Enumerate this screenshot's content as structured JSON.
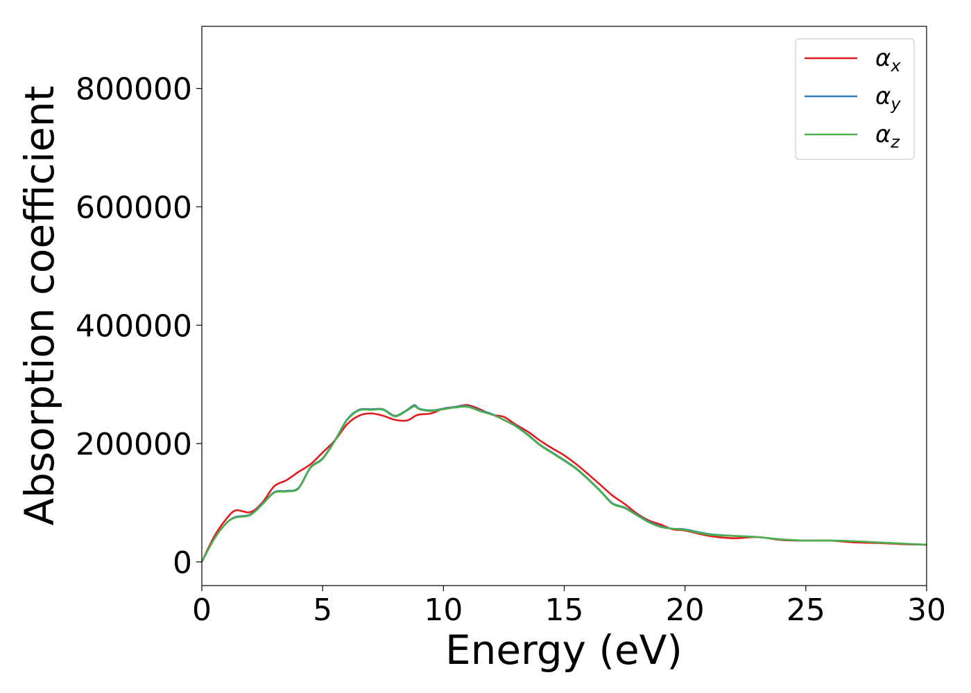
{
  "chart_data": {
    "type": "line",
    "title": "",
    "xlabel": "Energy (eV)",
    "ylabel": "Absorption coefficient",
    "xlim": [
      0,
      30
    ],
    "ylim": [
      -40000,
      905000
    ],
    "xticks": [
      0,
      5,
      10,
      15,
      20,
      25,
      30
    ],
    "xtick_labels": [
      "0",
      "5",
      "10",
      "15",
      "20",
      "25",
      "30"
    ],
    "yticks": [
      0,
      200000,
      400000,
      600000,
      800000
    ],
    "ytick_labels": [
      "0",
      "200000",
      "400000",
      "600000",
      "800000"
    ],
    "grid": false,
    "legend_position": "top-right",
    "x": [
      0,
      0.5,
      1,
      1.4,
      2,
      2.5,
      3,
      3.5,
      4,
      4.5,
      5,
      5.5,
      6,
      6.5,
      7,
      7.5,
      8,
      8.5,
      8.8,
      9,
      9.5,
      10,
      10.5,
      11,
      11.5,
      12,
      12.5,
      13,
      13.5,
      14,
      14.5,
      15,
      15.5,
      16,
      16.5,
      17,
      17.5,
      18,
      18.5,
      19,
      19.5,
      20,
      21,
      22,
      23,
      24,
      25,
      26,
      27,
      28,
      29,
      30
    ],
    "series": [
      {
        "name": "α",
        "subscript": "x",
        "color": "#e41a1c",
        "values": [
          0,
          42000,
          72000,
          87000,
          84000,
          100000,
          128000,
          138000,
          152000,
          165000,
          185000,
          205000,
          232000,
          247000,
          251000,
          247000,
          240000,
          239000,
          246000,
          249000,
          251000,
          259000,
          262000,
          265000,
          258000,
          249000,
          245000,
          232000,
          220000,
          205000,
          192000,
          180000,
          165000,
          148000,
          130000,
          112000,
          98000,
          82000,
          70000,
          63000,
          55000,
          53000,
          44000,
          40000,
          42000,
          37000,
          36000,
          36000,
          33000,
          32000,
          30000,
          29000
        ]
      },
      {
        "name": "α",
        "subscript": "y",
        "color": "#377eb8",
        "values": [
          0,
          38000,
          65000,
          76000,
          80000,
          98000,
          118000,
          120000,
          125000,
          160000,
          175000,
          205000,
          240000,
          257000,
          258000,
          258000,
          247000,
          257000,
          265000,
          259000,
          256000,
          259000,
          262000,
          263000,
          256000,
          250000,
          240000,
          230000,
          215000,
          198000,
          185000,
          172000,
          158000,
          140000,
          120000,
          99000,
          92000,
          80000,
          68000,
          60000,
          56000,
          55000,
          47000,
          44000,
          42000,
          38000,
          36000,
          36000,
          35000,
          33000,
          31000,
          29000
        ]
      },
      {
        "name": "α",
        "subscript": "z",
        "color": "#4daf4a",
        "values": [
          0,
          38000,
          65000,
          75000,
          79000,
          97000,
          117000,
          119000,
          124000,
          159000,
          174000,
          204000,
          239000,
          256000,
          257000,
          257000,
          246000,
          256000,
          263000,
          258000,
          255000,
          258000,
          261000,
          262000,
          255000,
          249000,
          240000,
          229000,
          214000,
          197000,
          184000,
          171000,
          157000,
          139000,
          119000,
          98000,
          91000,
          79000,
          67000,
          59000,
          56000,
          54000,
          46000,
          44000,
          42000,
          38000,
          36000,
          36000,
          35000,
          33000,
          31000,
          29000
        ]
      }
    ]
  }
}
